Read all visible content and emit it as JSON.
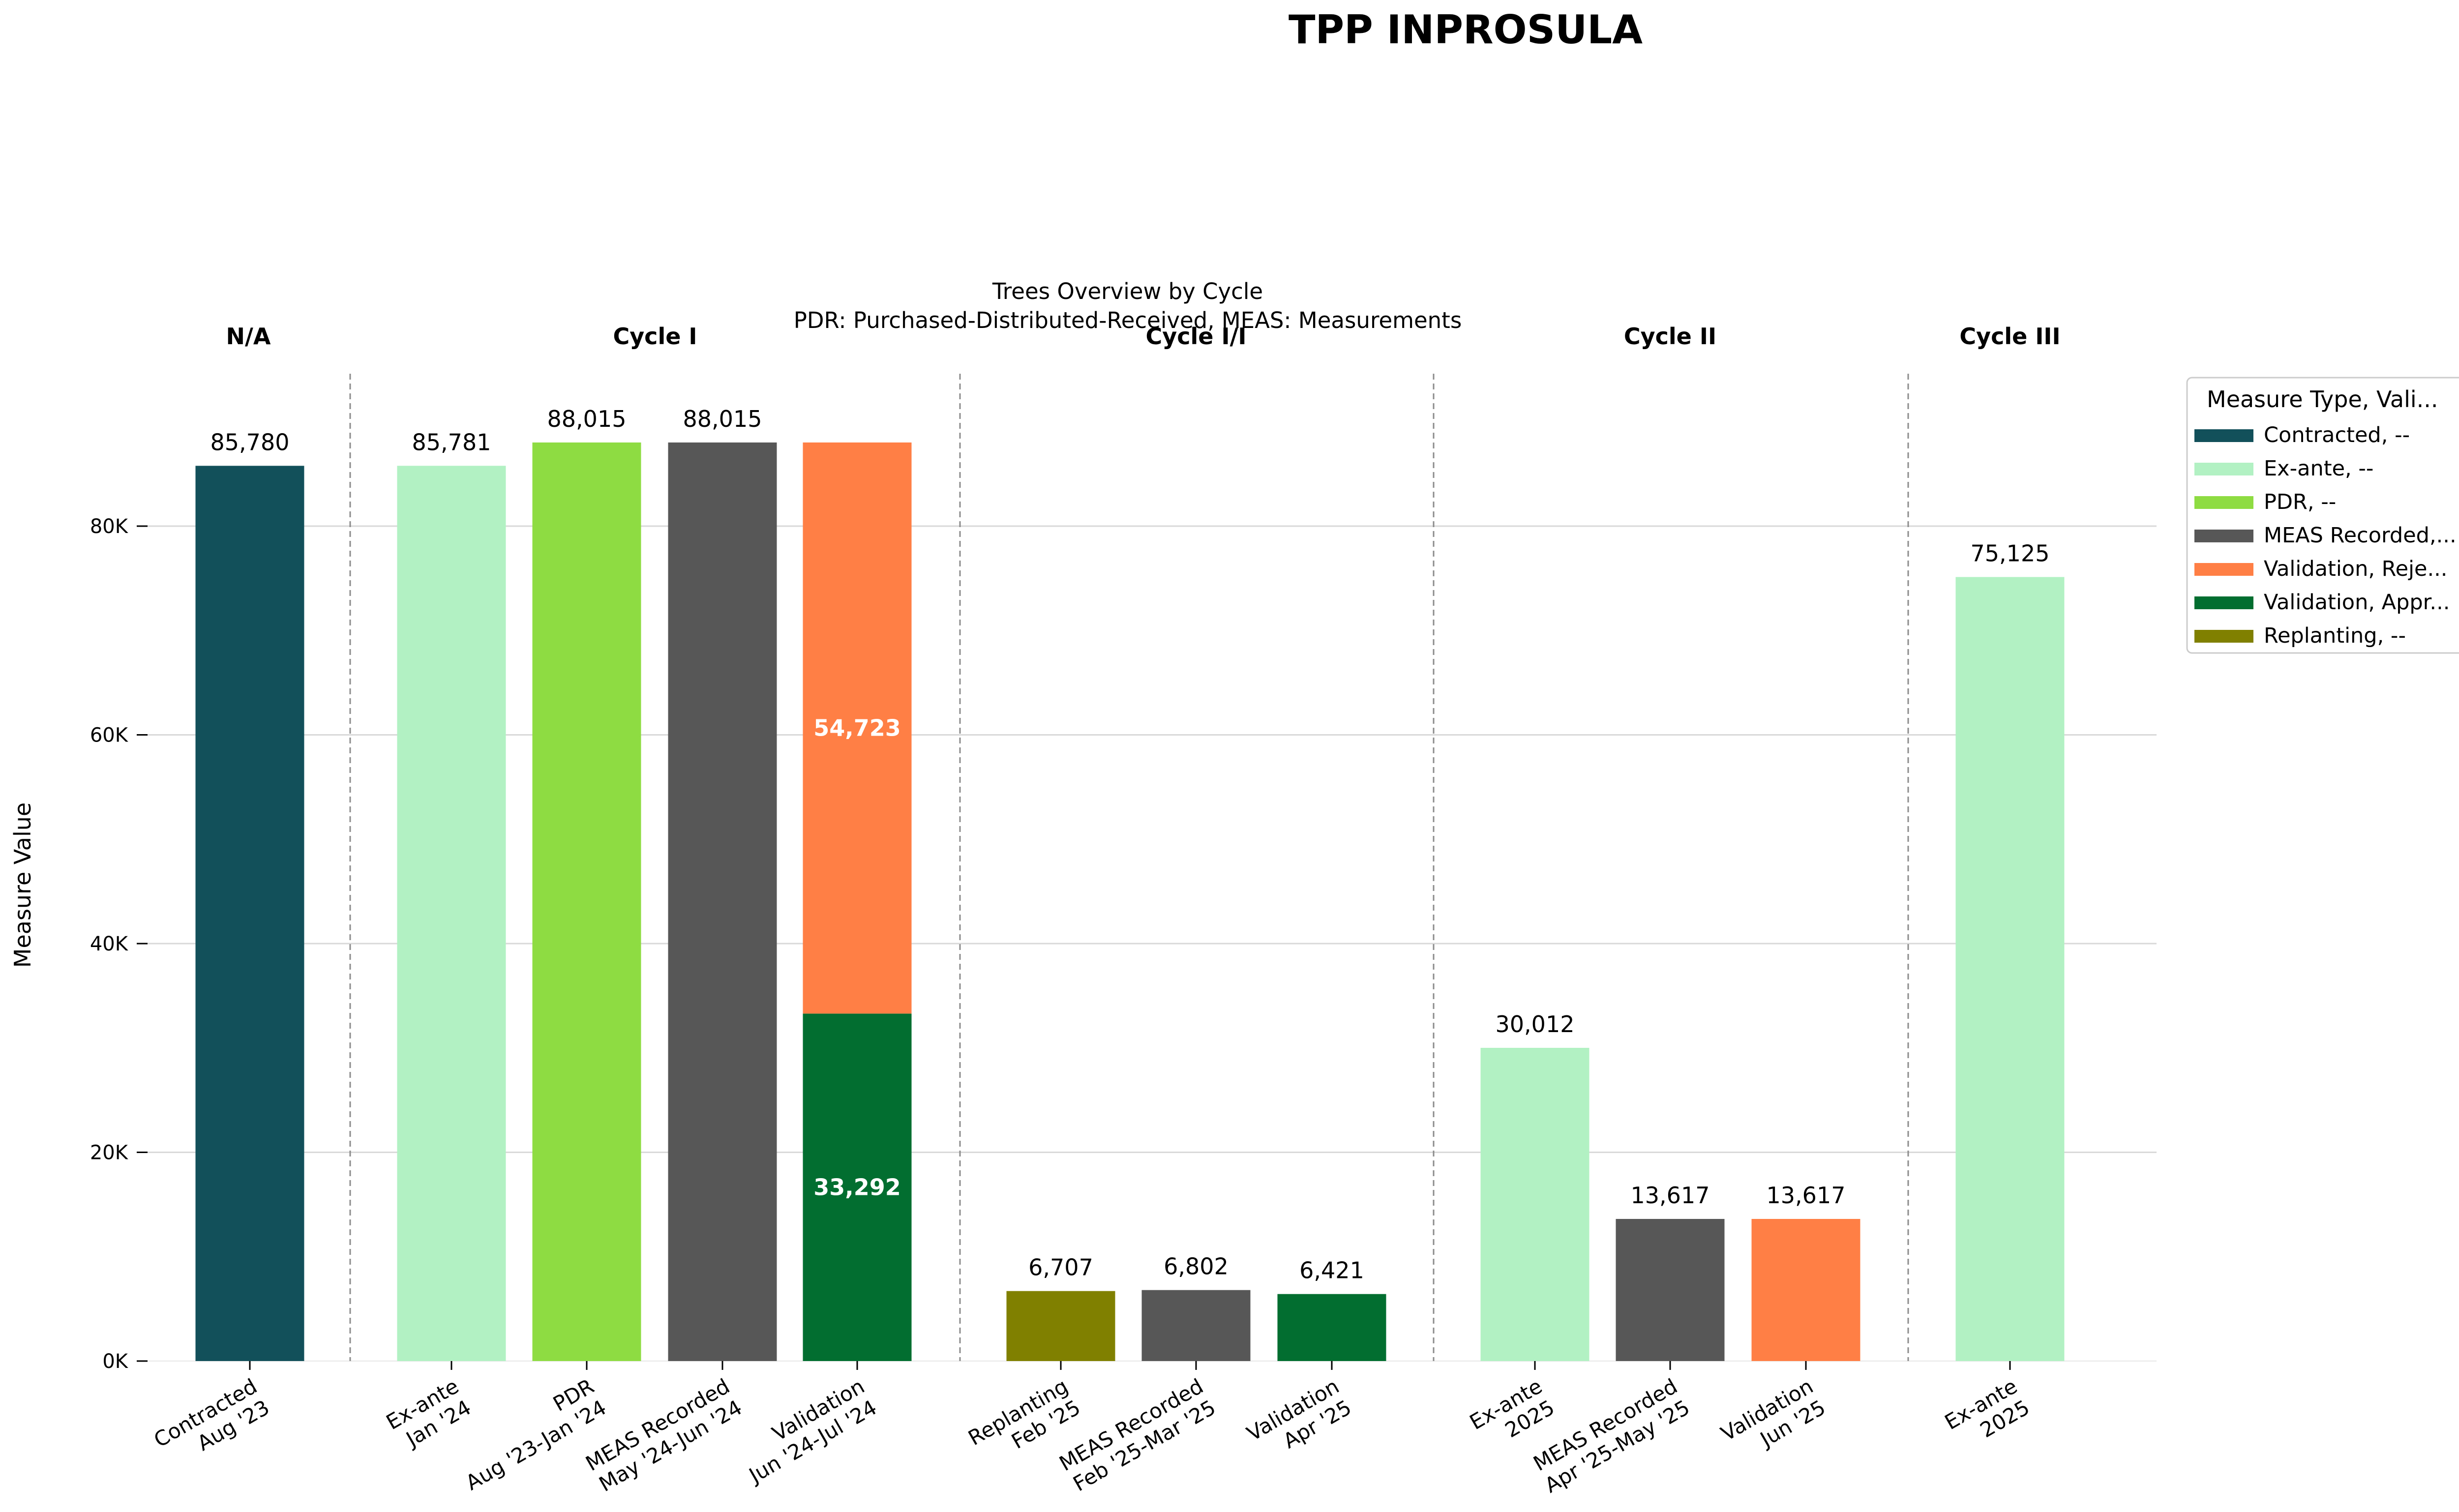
{
  "title": "TPP INPROSULA",
  "subtitle_line1": "Trees Overview by Cycle",
  "subtitle_line2": "PDR: Purchased-Distributed-Received, MEAS: Measurements",
  "chart_data": {
    "type": "bar",
    "stacked_where_multiple": true,
    "ylabel": "Measure Value",
    "xlabel": "",
    "ylim": [
      0,
      95000
    ],
    "yticks": [
      0,
      20000,
      40000,
      60000,
      80000
    ],
    "ytick_labels": [
      "0K",
      "20K",
      "40K",
      "60K",
      "80K"
    ],
    "grid": "horizontal",
    "groups": [
      {
        "label": "N/A",
        "count": 1
      },
      {
        "label": "Cycle I",
        "count": 4
      },
      {
        "label": "Cycle I/I",
        "count": 3
      },
      {
        "label": "Cycle II",
        "count": 3
      },
      {
        "label": "Cycle III",
        "count": 1
      }
    ],
    "bars": [
      {
        "label": [
          "Contracted",
          "Aug '23"
        ],
        "segments": [
          {
            "type": "Contracted, --",
            "value": 85780
          }
        ],
        "label_text": "85,780"
      },
      {
        "label": [
          "Ex-ante",
          "Jan '24"
        ],
        "segments": [
          {
            "type": "Ex-ante, --",
            "value": 85781
          }
        ],
        "label_text": "85,781"
      },
      {
        "label": [
          "PDR",
          "Aug '23-Jan '24"
        ],
        "segments": [
          {
            "type": "PDR, --",
            "value": 88015
          }
        ],
        "label_text": "88,015"
      },
      {
        "label": [
          "MEAS Recorded",
          "May '24-Jun '24"
        ],
        "segments": [
          {
            "type": "MEAS Recorded,...",
            "value": 88015
          }
        ],
        "label_text": "88,015"
      },
      {
        "label": [
          "Validation",
          "Jun '24-Jul '24"
        ],
        "segments": [
          {
            "type": "Validation, Appr...",
            "value": 33292,
            "inner_label": "33,292"
          },
          {
            "type": "Validation, Reje...",
            "value": 54723,
            "inner_label": "54,723"
          }
        ],
        "label_text": ""
      },
      {
        "label": [
          "Replanting",
          "Feb '25"
        ],
        "segments": [
          {
            "type": "Replanting, --",
            "value": 6707
          }
        ],
        "label_text": "6,707"
      },
      {
        "label": [
          "MEAS Recorded",
          "Feb '25-Mar '25"
        ],
        "segments": [
          {
            "type": "MEAS Recorded,...",
            "value": 6802
          }
        ],
        "label_text": "6,802"
      },
      {
        "label": [
          "Validation",
          "Apr '25"
        ],
        "segments": [
          {
            "type": "Validation, Appr...",
            "value": 6421
          }
        ],
        "label_text": "6,421"
      },
      {
        "label": [
          "Ex-ante",
          "2025"
        ],
        "segments": [
          {
            "type": "Ex-ante, --",
            "value": 30012
          }
        ],
        "label_text": "30,012"
      },
      {
        "label": [
          "MEAS Recorded",
          "Apr '25-May '25"
        ],
        "segments": [
          {
            "type": "MEAS Recorded,...",
            "value": 13617
          }
        ],
        "label_text": "13,617"
      },
      {
        "label": [
          "Validation",
          "Jun '25"
        ],
        "segments": [
          {
            "type": "Validation, Reje...",
            "value": 13617
          }
        ],
        "label_text": "13,617"
      },
      {
        "label": [
          "Ex-ante",
          "2025"
        ],
        "segments": [
          {
            "type": "Ex-ante, --",
            "value": 75125
          }
        ],
        "label_text": "75,125"
      }
    ],
    "legend": {
      "title": "Measure Type, Vali...",
      "placement": "upper-right-outside",
      "entries": [
        {
          "name": "Contracted, --",
          "color": "#12505a"
        },
        {
          "name": "Ex-ante, --",
          "color": "#b2f1c3"
        },
        {
          "name": "PDR, --",
          "color": "#8edc42"
        },
        {
          "name": "MEAS Recorded,...",
          "color": "#575757"
        },
        {
          "name": "Validation, Reje...",
          "color": "#ff7f45"
        },
        {
          "name": "Validation, Appr...",
          "color": "#026e30"
        },
        {
          "name": "Replanting, --",
          "color": "#808000"
        }
      ]
    }
  }
}
